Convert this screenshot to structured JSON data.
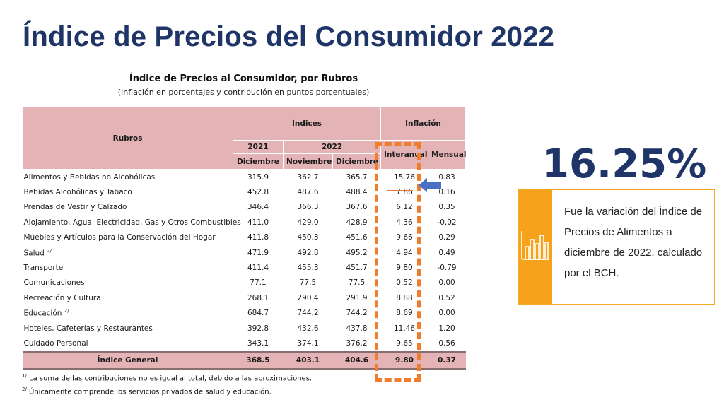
{
  "slide": {
    "title": "Índice de Precios del Consumidor 2022"
  },
  "table": {
    "title": "Índice de Precios al Consumidor, por Rubros",
    "subtitle": "(Inflación en porcentajes y contribución en puntos porcentuales)",
    "headers": {
      "rubros": "Rubros",
      "indices": "Índices",
      "inflacion": "Inflación",
      "year_2021": "2021",
      "year_2022": "2022",
      "diciembre_2021": "Diciembre",
      "noviembre": "Noviembre",
      "diciembre_2022": "Diciembre",
      "interanual": "Interanual",
      "mensual": "Mensual"
    },
    "rows": [
      {
        "name": "Alimentos y Bebidas no Alcohólicas",
        "note": "",
        "dic2021": "315.9",
        "nov2022": "362.7",
        "dic2022": "365.7",
        "interanual": "15.76",
        "mensual": "0.83"
      },
      {
        "name": "Bebidas Alcohólicas y Tabaco",
        "note": "",
        "dic2021": "452.8",
        "nov2022": "487.6",
        "dic2022": "488.4",
        "interanual": "7.86",
        "mensual": "0.16"
      },
      {
        "name": "Prendas de Vestir y Calzado",
        "note": "",
        "dic2021": "346.4",
        "nov2022": "366.3",
        "dic2022": "367.6",
        "interanual": "6.12",
        "mensual": "0.35"
      },
      {
        "name": "Alojamiento, Agua, Electricidad, Gas y Otros Combustibles",
        "note": "",
        "dic2021": "411.0",
        "nov2022": "429.0",
        "dic2022": "428.9",
        "interanual": "4.36",
        "mensual": "-0.02"
      },
      {
        "name": "Muebles y Artículos para la Conservación del Hogar",
        "note": "",
        "dic2021": "411.8",
        "nov2022": "450.3",
        "dic2022": "451.6",
        "interanual": "9.66",
        "mensual": "0.29"
      },
      {
        "name": "Salud",
        "note": "2/",
        "dic2021": "471.9",
        "nov2022": "492.8",
        "dic2022": "495.2",
        "interanual": "4.94",
        "mensual": "0.49"
      },
      {
        "name": "Transporte",
        "note": "",
        "dic2021": "411.4",
        "nov2022": "455.3",
        "dic2022": "451.7",
        "interanual": "9.80",
        "mensual": "-0.79"
      },
      {
        "name": "Comunicaciones",
        "note": "",
        "dic2021": "77.1",
        "nov2022": "77.5",
        "dic2022": "77.5",
        "interanual": "0.52",
        "mensual": "0.00"
      },
      {
        "name": "Recreación y Cultura",
        "note": "",
        "dic2021": "268.1",
        "nov2022": "290.4",
        "dic2022": "291.9",
        "interanual": "8.88",
        "mensual": "0.52"
      },
      {
        "name": "Educación",
        "note": "2/",
        "dic2021": "684.7",
        "nov2022": "744.2",
        "dic2022": "744.2",
        "interanual": "8.69",
        "mensual": "0.00"
      },
      {
        "name": "Hoteles, Cafeterías y Restaurantes",
        "note": "",
        "dic2021": "392.8",
        "nov2022": "432.6",
        "dic2022": "437.8",
        "interanual": "11.46",
        "mensual": "1.20"
      },
      {
        "name": "Cuidado Personal",
        "note": "",
        "dic2021": "343.1",
        "nov2022": "374.1",
        "dic2022": "376.2",
        "interanual": "9.65",
        "mensual": "0.56"
      }
    ],
    "total": {
      "name": "Índice General",
      "dic2021": "368.5",
      "nov2022": "403.1",
      "dic2022": "404.6",
      "interanual": "9.80",
      "mensual": "0.37"
    },
    "footnotes": [
      {
        "mark": "1/",
        "text": "La suma de las contribuciones no es igual al total, debido a las aproximaciones."
      },
      {
        "mark": "2/",
        "text": "Únicamente comprende los servicios privados de salud y educación."
      }
    ]
  },
  "callout": {
    "percent": "16.25%",
    "text": "Fue la variación del Índice de Precios de Alimentos a diciembre de 2022, calculado por el BCH.",
    "icon": "bar-chart-icon"
  },
  "colors": {
    "title": "#1f3568",
    "header_fill": "#e3b3b6",
    "highlight_border": "#ef7d2b",
    "arrow": "#4a72c4",
    "card_accent": "#f7a21b"
  }
}
